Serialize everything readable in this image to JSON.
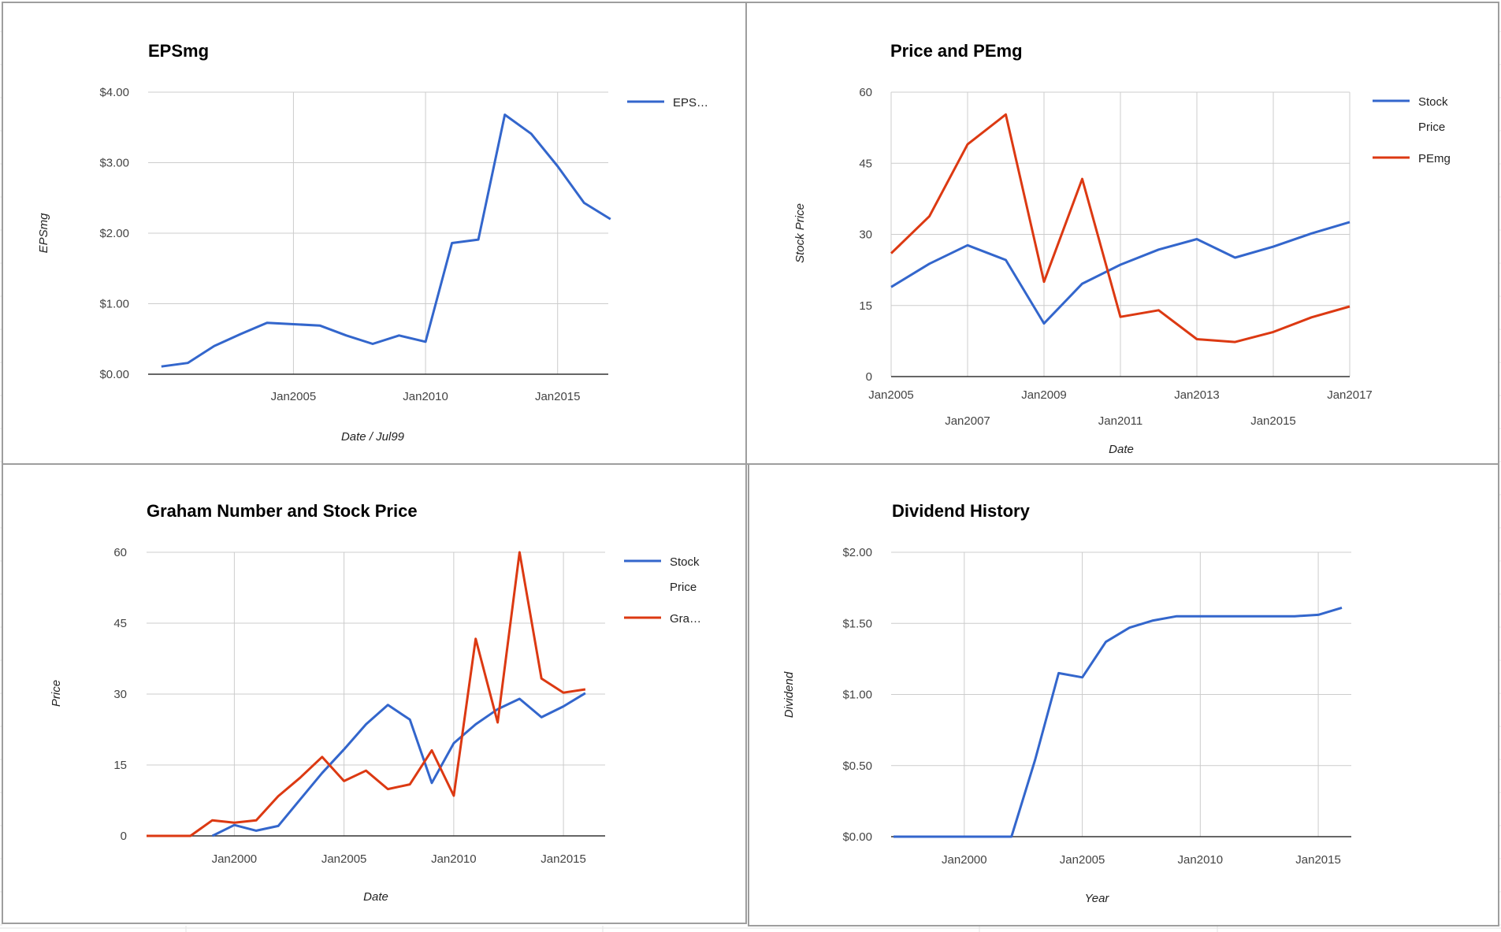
{
  "colors": {
    "blue": "#3366cc",
    "red": "#dc3912",
    "grid": "#cccccc",
    "axis": "#333333",
    "border": "#9e9e9e",
    "sheet_grid": "#e3e3e3"
  },
  "chart_data": [
    {
      "id": "epsmg",
      "type": "line",
      "title": "EPSmg",
      "xlabel": "Date / Jul99",
      "ylabel": "EPSmg",
      "ylim": [
        0,
        4
      ],
      "y_ticks": [
        "$0.00",
        "$1.00",
        "$2.00",
        "$3.00",
        "$4.00"
      ],
      "x_ticks": [
        "Jan2005",
        "Jan2010",
        "Jan2015"
      ],
      "legend": "right",
      "grid": true,
      "series": [
        {
          "name": "EPS…",
          "color": "blue",
          "x": [
            "Jan2000",
            "Jan2001",
            "Jan2002",
            "Jan2003",
            "Jan2004",
            "Jan2005",
            "Jan2006",
            "Jan2007",
            "Jan2008",
            "Jan2009",
            "Jan2010",
            "Jan2011",
            "Jan2012",
            "Jan2013",
            "Jan2014",
            "Jan2015",
            "Jan2016",
            "Jan2017"
          ],
          "values": [
            0.11,
            0.16,
            0.4,
            0.57,
            0.73,
            0.71,
            0.69,
            0.55,
            0.43,
            0.55,
            0.46,
            1.86,
            1.91,
            3.68,
            3.41,
            2.95,
            2.43,
            2.2
          ]
        }
      ]
    },
    {
      "id": "price-pemg",
      "type": "line",
      "title": "Price and PEmg",
      "xlabel": "Date",
      "ylabel": "Stock Price",
      "ylim": [
        0,
        60
      ],
      "y_ticks": [
        "0",
        "15",
        "30",
        "45",
        "60"
      ],
      "x_ticks": [
        "Jan2005",
        "Jan2007",
        "Jan2009",
        "Jan2011",
        "Jan2013",
        "Jan2015",
        "Jan2017"
      ],
      "legend": "right",
      "grid": true,
      "series": [
        {
          "name": "Stock Price",
          "color": "blue",
          "x": [
            "Jan2005",
            "Jan2006",
            "Jan2007",
            "Jan2008",
            "Jan2009",
            "Jan2010",
            "Jan2011",
            "Jan2012",
            "Jan2013",
            "Jan2014",
            "Jan2015",
            "Jan2016",
            "Jan2017"
          ],
          "values": [
            18.9,
            23.8,
            27.7,
            24.6,
            11.2,
            19.6,
            23.6,
            26.8,
            29.0,
            25.1,
            27.4,
            30.2,
            32.6
          ]
        },
        {
          "name": "PEmg",
          "color": "red",
          "x": [
            "Jan2005",
            "Jan2006",
            "Jan2007",
            "Jan2008",
            "Jan2009",
            "Jan2010",
            "Jan2011",
            "Jan2012",
            "Jan2013",
            "Jan2014",
            "Jan2015",
            "Jan2016",
            "Jan2017"
          ],
          "values": [
            26.0,
            33.8,
            49.0,
            55.3,
            20.0,
            41.7,
            12.6,
            14.0,
            7.9,
            7.3,
            9.4,
            12.5,
            14.8
          ]
        }
      ]
    },
    {
      "id": "graham",
      "type": "line",
      "title": "Graham Number and Stock Price",
      "xlabel": "Date",
      "ylabel": "Price",
      "ylim": [
        0,
        60
      ],
      "y_ticks": [
        "0",
        "15",
        "30",
        "45",
        "60"
      ],
      "x_ticks": [
        "Jan2000",
        "Jan2005",
        "Jan2010",
        "Jan2015"
      ],
      "legend": "right",
      "grid": true,
      "series": [
        {
          "name": "Stock Price",
          "color": "blue",
          "x": [
            "Jan1999",
            "Jan2000",
            "Jan2001",
            "Jan2002",
            "Jan2003",
            "Jan2004",
            "Jan2005",
            "Jan2006",
            "Jan2007",
            "Jan2008",
            "Jan2009",
            "Jan2010",
            "Jan2011",
            "Jan2012",
            "Jan2013",
            "Jan2014",
            "Jan2015",
            "Jan2016"
          ],
          "values": [
            0,
            2.3,
            1.1,
            2.1,
            7.7,
            13.3,
            18.3,
            23.6,
            27.7,
            24.6,
            11.2,
            19.6,
            23.6,
            26.8,
            29.0,
            25.1,
            27.4,
            30.2
          ]
        },
        {
          "name": "Gra…",
          "color": "red",
          "x": [
            "Jan1996",
            "Jan1998",
            "Jan1999",
            "Jan2000",
            "Jan2001",
            "Jan2002",
            "Jan2003",
            "Jan2004",
            "Jan2005",
            "Jan2006",
            "Jan2007",
            "Jan2008",
            "Jan2009",
            "Jan2010",
            "Jan2011",
            "Jan2012",
            "Jan2013",
            "Jan2014",
            "Jan2015",
            "Jan2016"
          ],
          "values": [
            0,
            0,
            3.3,
            2.8,
            3.3,
            8.4,
            12.3,
            16.7,
            11.6,
            13.8,
            9.9,
            10.9,
            18.1,
            8.5,
            41.7,
            24.0,
            60.0,
            33.3,
            30.3,
            31.0
          ]
        }
      ]
    },
    {
      "id": "dividend",
      "type": "line",
      "title": "Dividend History",
      "xlabel": "Year",
      "ylabel": "Dividend",
      "ylim": [
        0,
        2
      ],
      "y_ticks": [
        "$0.00",
        "$0.50",
        "$1.00",
        "$1.50",
        "$2.00"
      ],
      "x_ticks": [
        "Jan2000",
        "Jan2005",
        "Jan2010",
        "Jan2015"
      ],
      "legend": "none",
      "grid": true,
      "series": [
        {
          "color": "blue",
          "x": [
            "Jan1997",
            "Jan1998",
            "Jan1999",
            "Jan2000",
            "Jan2001",
            "Jan2002",
            "Jan2003",
            "Jan2004",
            "Jan2005",
            "Jan2006",
            "Jan2007",
            "Jan2008",
            "Jan2009",
            "Jan2010",
            "Jan2011",
            "Jan2012",
            "Jan2013",
            "Jan2014",
            "Jan2015",
            "Jan2016"
          ],
          "values": [
            0,
            0,
            0,
            0,
            0,
            0,
            0.54,
            1.15,
            1.12,
            1.37,
            1.47,
            1.52,
            1.55,
            1.55,
            1.55,
            1.55,
            1.55,
            1.55,
            1.56,
            1.61
          ]
        }
      ]
    }
  ]
}
